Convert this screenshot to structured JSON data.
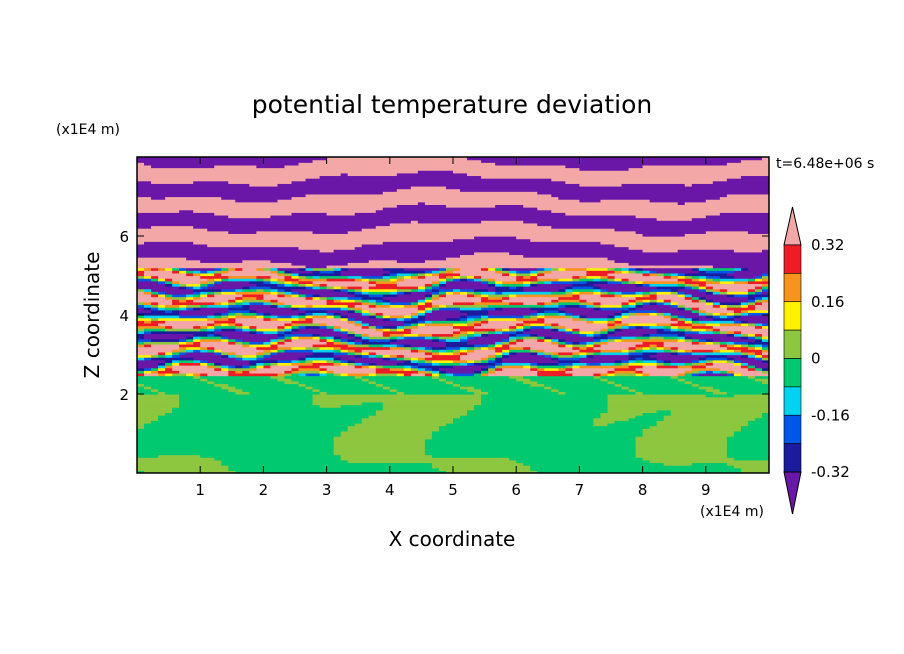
{
  "chart_data": {
    "type": "heatmap",
    "title": "potential temperature deviation",
    "time_label": "t=6.48e+06 s",
    "xlabel": "X coordinate",
    "ylabel": "Z coordinate",
    "x_unit": "(x1E4 m)",
    "y_unit": "(x1E4 m)",
    "xlim": [
      0,
      10
    ],
    "ylim": [
      0,
      8
    ],
    "x_ticks": [
      "1",
      "2",
      "3",
      "4",
      "5",
      "6",
      "7",
      "8",
      "9"
    ],
    "y_ticks": [
      "2",
      "4",
      "6"
    ],
    "colorbar": {
      "tick_labels": [
        "0.32",
        "0.16",
        "0",
        "-0.16",
        "-0.32"
      ],
      "tick_values": [
        0.32,
        0.16,
        0,
        -0.16,
        -0.32
      ],
      "level_step": 0.08,
      "colors_top_to_bottom": [
        "#f4a7a7",
        "#ee1c24",
        "#f7941d",
        "#fff200",
        "#8dc63f",
        "#00c96f",
        "#00d2f0",
        "#0057e7",
        "#1b1b9e",
        "#6a17a8"
      ],
      "extend": "both"
    },
    "regions": [
      {
        "z_range": [
          0,
          2.0
        ],
        "pattern": "large-scale blobs",
        "dominant": [
          0.04,
          0.0
        ]
      },
      {
        "z_range": [
          2.0,
          2.5
        ],
        "pattern": "near-uniform layer",
        "dominant": [
          0.0
        ]
      },
      {
        "z_range": [
          2.5,
          5.2
        ],
        "pattern": "turbulent multi-level bands",
        "dominant": [
          -0.4,
          0.4,
          0.2,
          -0.2
        ]
      },
      {
        "z_range": [
          5.2,
          8.0
        ],
        "pattern": "alternating horizontal bands",
        "dominant": [
          0.4,
          -0.4
        ]
      }
    ]
  }
}
